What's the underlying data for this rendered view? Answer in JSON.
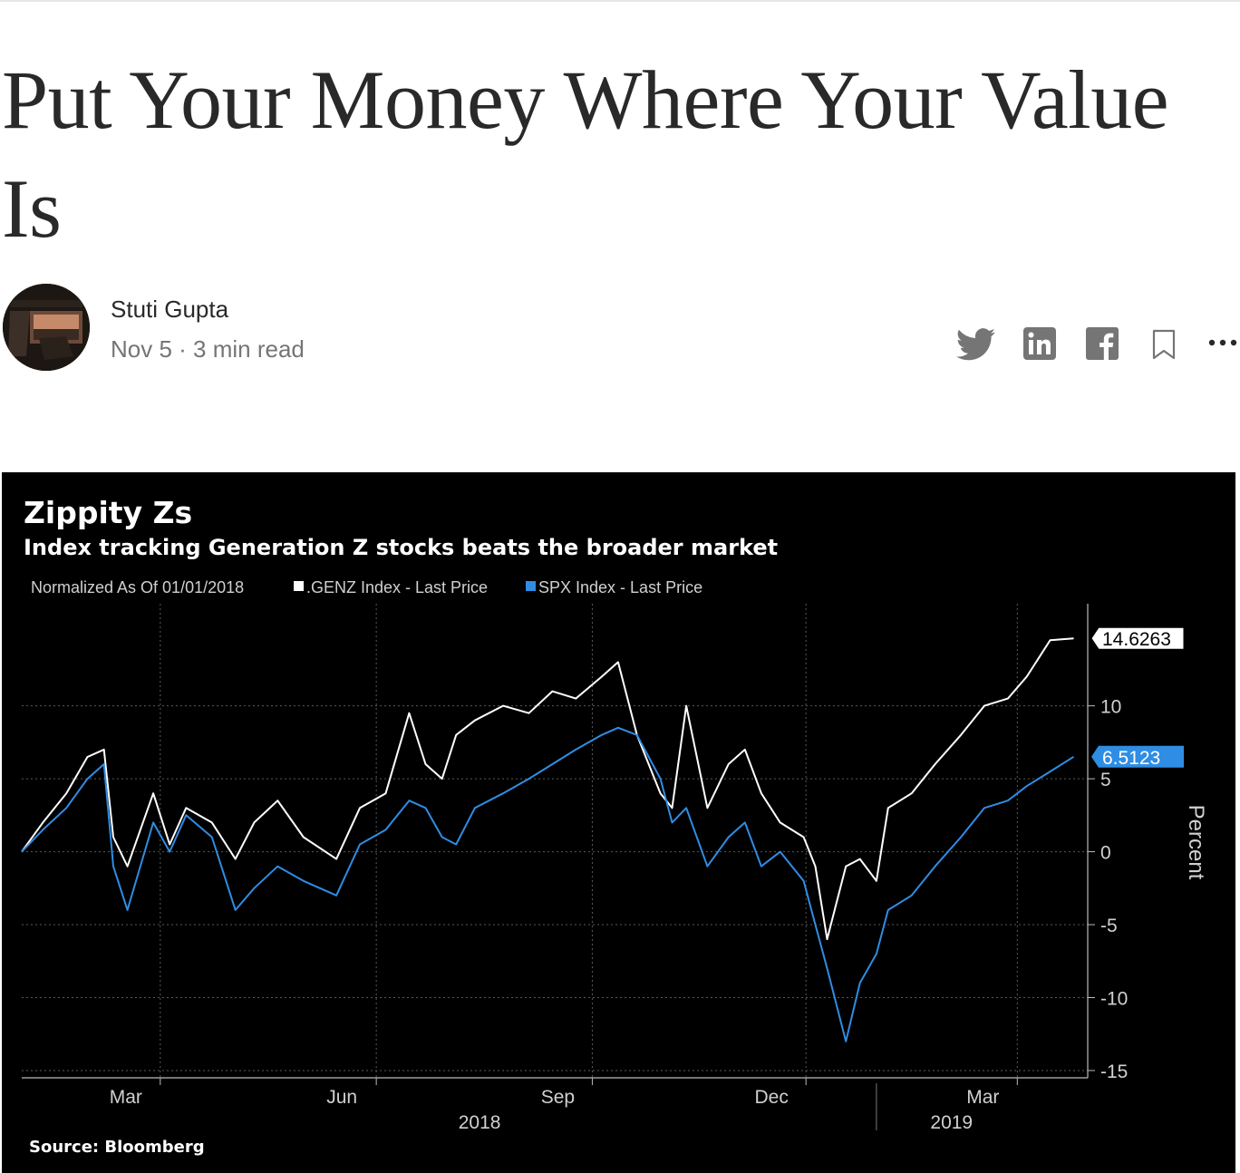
{
  "article": {
    "title": "Put Your Money Where Your Value Is",
    "author": "Stuti Gupta",
    "meta": "Nov 5 · 3 min read"
  },
  "share_icons": [
    "twitter-icon",
    "linkedin-icon",
    "facebook-icon",
    "bookmark-icon",
    "more-icon"
  ],
  "colors": {
    "genz": "#ffffff",
    "spx": "#2f8de4",
    "background": "#000000",
    "text": "#292929"
  },
  "chart_data": {
    "type": "line",
    "title": "Zippity Zs",
    "subtitle": "Index tracking Generation Z stocks beats the broader market",
    "note": "Normalized As Of 01/01/2018",
    "ylabel": "Percent",
    "source": "Source: Bloomberg",
    "ylim": [
      -15.5,
      17
    ],
    "y_ticks": [
      -15,
      -10,
      -5,
      0,
      5,
      10
    ],
    "y_tick_labels": [
      "-15",
      "-10",
      "-5",
      "0",
      "5",
      "10"
    ],
    "x_ticks": [
      {
        "date": "2018-03-01",
        "label": "Mar"
      },
      {
        "date": "2018-06-01",
        "label": "Jun"
      },
      {
        "date": "2018-09-01",
        "label": "Sep"
      },
      {
        "date": "2018-12-01",
        "label": "Dec"
      },
      {
        "date": "2019-03-01",
        "label": "Mar"
      }
    ],
    "year_labels": [
      {
        "date": "2018-07-15",
        "label": "2018"
      },
      {
        "date": "2019-02-01",
        "label": "2019"
      }
    ],
    "year_divider": "2018-12-31",
    "xlim": [
      "2018-01-01",
      "2019-03-31"
    ],
    "legend_position": "top-left",
    "series": [
      {
        "name": ".GENZ Index - Last Price",
        "last_label": "14.6263",
        "x": [
          "2018-01-01",
          "2018-01-10",
          "2018-01-20",
          "2018-01-29",
          "2018-02-05",
          "2018-02-09",
          "2018-02-15",
          "2018-02-26",
          "2018-03-05",
          "2018-03-12",
          "2018-03-23",
          "2018-04-02",
          "2018-04-10",
          "2018-04-20",
          "2018-05-01",
          "2018-05-15",
          "2018-05-25",
          "2018-06-05",
          "2018-06-15",
          "2018-06-22",
          "2018-06-29",
          "2018-07-05",
          "2018-07-13",
          "2018-07-25",
          "2018-08-05",
          "2018-08-15",
          "2018-08-25",
          "2018-09-05",
          "2018-09-12",
          "2018-09-20",
          "2018-09-30",
          "2018-10-05",
          "2018-10-11",
          "2018-10-20",
          "2018-10-29",
          "2018-11-05",
          "2018-11-12",
          "2018-11-20",
          "2018-11-30",
          "2018-12-05",
          "2018-12-10",
          "2018-12-18",
          "2018-12-24",
          "2018-12-31",
          "2019-01-05",
          "2019-01-15",
          "2019-01-25",
          "2019-02-05",
          "2019-02-15",
          "2019-02-25",
          "2019-03-05",
          "2019-03-15",
          "2019-03-25"
        ],
        "values": [
          0,
          2,
          4,
          6.5,
          7,
          1,
          -1,
          4,
          0.5,
          3,
          2,
          -0.5,
          2,
          3.5,
          1,
          -0.5,
          3,
          4,
          9.5,
          6,
          5,
          8,
          9,
          10,
          9.5,
          11,
          10.5,
          12,
          13,
          8,
          4,
          3,
          10,
          3,
          6,
          7,
          4,
          2,
          1,
          -1,
          -6,
          -1,
          -0.5,
          -2,
          3,
          4,
          6,
          8,
          10,
          10.5,
          12,
          14.5,
          14.6263
        ]
      },
      {
        "name": "SPX Index - Last Price",
        "last_label": "6.5123",
        "x": [
          "2018-01-01",
          "2018-01-10",
          "2018-01-20",
          "2018-01-29",
          "2018-02-05",
          "2018-02-09",
          "2018-02-15",
          "2018-02-26",
          "2018-03-05",
          "2018-03-12",
          "2018-03-23",
          "2018-04-02",
          "2018-04-10",
          "2018-04-20",
          "2018-05-01",
          "2018-05-15",
          "2018-05-25",
          "2018-06-05",
          "2018-06-15",
          "2018-06-22",
          "2018-06-29",
          "2018-07-05",
          "2018-07-13",
          "2018-07-25",
          "2018-08-05",
          "2018-08-15",
          "2018-08-25",
          "2018-09-05",
          "2018-09-12",
          "2018-09-20",
          "2018-09-30",
          "2018-10-05",
          "2018-10-11",
          "2018-10-20",
          "2018-10-29",
          "2018-11-05",
          "2018-11-12",
          "2018-11-20",
          "2018-11-30",
          "2018-12-05",
          "2018-12-10",
          "2018-12-18",
          "2018-12-24",
          "2018-12-31",
          "2019-01-05",
          "2019-01-15",
          "2019-01-25",
          "2019-02-05",
          "2019-02-15",
          "2019-02-25",
          "2019-03-05",
          "2019-03-15",
          "2019-03-25"
        ],
        "values": [
          0,
          1.5,
          3,
          5,
          6,
          -1,
          -4,
          2,
          0,
          2.5,
          1,
          -4,
          -2.5,
          -1,
          -2,
          -3,
          0.5,
          1.5,
          3.5,
          3,
          1,
          0.5,
          3,
          4,
          5,
          6,
          7,
          8,
          8.5,
          8,
          5,
          2,
          3,
          -1,
          1,
          2,
          -1,
          0,
          -2,
          -5,
          -8,
          -13,
          -9,
          -7,
          -4,
          -3,
          -1,
          1,
          3,
          3.5,
          4.5,
          5.5,
          6.5123
        ]
      }
    ]
  }
}
